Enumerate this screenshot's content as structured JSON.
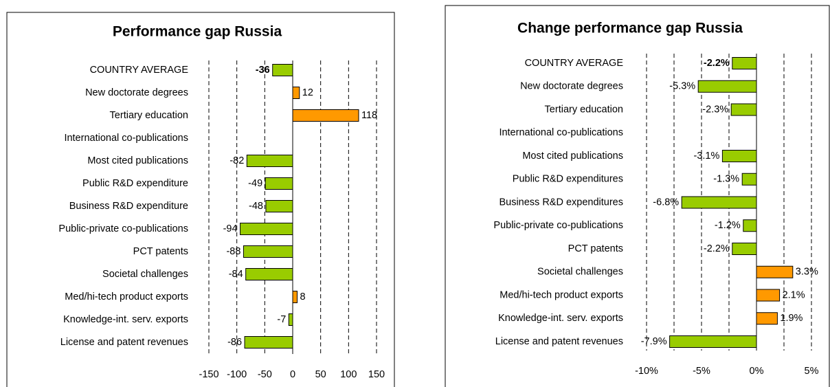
{
  "chart_data": [
    {
      "type": "bar",
      "orientation": "horizontal",
      "title": "Performance gap Russia",
      "categories": [
        "COUNTRY AVERAGE",
        "New doctorate degrees",
        "Tertiary education",
        "International co-publications",
        "Most cited publications",
        "Public R&D expenditure",
        "Business R&D expenditure",
        "Public-private co-publications",
        "PCT patents",
        "Societal challenges",
        "Med/hi-tech product exports",
        "Knowledge-int. serv. exports",
        "License and patent revenues"
      ],
      "values": [
        -36,
        12,
        118,
        null,
        -82,
        -49,
        -48,
        -94,
        -88,
        -84,
        8,
        -7,
        -86
      ],
      "negative_color": "#99cc00",
      "positive_color": "#ff9900",
      "xlim": [
        -150,
        150
      ],
      "xticks": [
        -150,
        -100,
        -50,
        0,
        50,
        100,
        150
      ],
      "grid": true
    },
    {
      "type": "bar",
      "orientation": "horizontal",
      "title": "Change performance gap Russia",
      "categories": [
        "COUNTRY AVERAGE",
        "New doctorate degrees",
        "Tertiary education",
        "International co-publications",
        "Most cited publications",
        "Public R&D expenditures",
        "Business R&D expenditures",
        "Public-private co-publications",
        "PCT patents",
        "Societal challenges",
        "Med/hi-tech product exports",
        "Knowledge-int. serv. exports",
        "License and patent revenues"
      ],
      "values": [
        -2.2,
        -5.3,
        -2.3,
        null,
        -3.1,
        -1.3,
        -6.8,
        -1.2,
        -2.2,
        3.3,
        2.1,
        1.9,
        -7.9
      ],
      "value_labels": [
        "-2.2%",
        "-5.3%",
        "-2.3%",
        null,
        "-3.1%",
        "-1.3%",
        "-6.8%",
        "-1.2%",
        "-2.2%",
        "3.3%",
        "2.1%",
        "1.9%",
        "-7.9%"
      ],
      "negative_color": "#99cc00",
      "positive_color": "#ff9900",
      "xlim": [
        -10,
        5
      ],
      "xticks": [
        {
          "value": -10,
          "label": "-10%"
        },
        {
          "value": -5,
          "label": "-5%"
        },
        {
          "value": 0,
          "label": "0%"
        },
        {
          "value": 5,
          "label": "5%"
        }
      ],
      "minor_xticks": [
        -7.5,
        -2.5,
        2.5
      ],
      "grid": true
    }
  ]
}
